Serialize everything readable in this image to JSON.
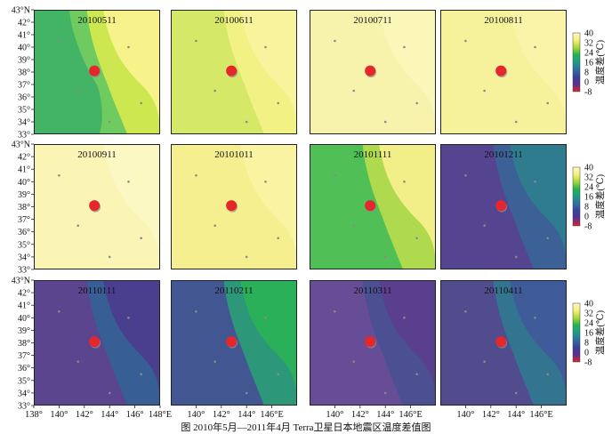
{
  "chart_data": {
    "type": "heatmap",
    "description": "Monthly temperature-difference maps (12 panels)",
    "epicenter": {
      "lon": 142.8,
      "lat": 38.1
    },
    "y_ticks": [
      "43°N",
      "42°",
      "41°",
      "40°",
      "39°",
      "38°",
      "37°",
      "36°",
      "35°",
      "34°",
      "33°"
    ],
    "x_ticks_col1": [
      "138°",
      "140°",
      "142°",
      "144°",
      "146°",
      "148°E"
    ],
    "x_ticks_col2": [
      "140°",
      "142°",
      "144°",
      "146°E"
    ],
    "x_ticks_col3": [
      "140°",
      "142°",
      "144°",
      "146°E"
    ],
    "x_ticks_col4": [
      "140°",
      "142°",
      "144°",
      "146°E"
    ],
    "colorbar": {
      "title": "温度差(℃)",
      "ticks": [
        "40",
        "32",
        "24",
        "16",
        "8",
        "0",
        "-8"
      ],
      "range": [
        -8,
        40
      ],
      "colors": [
        "#d9262b",
        "#5b2f8f",
        "#3a3f9a",
        "#2f6fa0",
        "#1f9a8a",
        "#22b24c",
        "#a7d63a",
        "#f5f07a",
        "#fdf9c4"
      ]
    },
    "panels": [
      {
        "date": "20100511",
        "base": "#f7f28a",
        "layers": [
          {
            "c": "#c8e64a",
            "o": 0.9
          },
          {
            "c": "#5ec463",
            "o": 0.85
          },
          {
            "c": "#26a36b",
            "o": 0.6
          }
        ]
      },
      {
        "date": "20100611",
        "base": "#f8f39c",
        "layers": [
          {
            "c": "#eef07a",
            "o": 0.7
          },
          {
            "c": "#c4e254",
            "o": 0.6
          }
        ]
      },
      {
        "date": "20100711",
        "base": "#fbf7b8",
        "layers": [
          {
            "c": "#f6f0a0",
            "o": 0.5
          }
        ]
      },
      {
        "date": "20100811",
        "base": "#f9f4a8",
        "layers": [
          {
            "c": "#f3ee8e",
            "o": 0.5
          }
        ]
      },
      {
        "date": "20100911",
        "base": "#fcf8c4",
        "layers": [
          {
            "c": "#f7f1a6",
            "o": 0.5
          }
        ]
      },
      {
        "date": "20101011",
        "base": "#f9f3a2",
        "layers": [
          {
            "c": "#f1ec82",
            "o": 0.6
          }
        ]
      },
      {
        "date": "20101111",
        "base": "#f3ef88",
        "layers": [
          {
            "c": "#9fd43e",
            "o": 0.8
          },
          {
            "c": "#3fbb58",
            "o": 0.85
          }
        ]
      },
      {
        "date": "20101211",
        "base": "#2f7c8e",
        "layers": [
          {
            "c": "#3e5a98",
            "o": 0.8
          },
          {
            "c": "#5a3f8e",
            "o": 0.85
          }
        ]
      },
      {
        "date": "20110111",
        "base": "#4a3f8e",
        "layers": [
          {
            "c": "#2f6c98",
            "o": 0.7
          },
          {
            "c": "#6a3a8c",
            "o": 0.7
          }
        ]
      },
      {
        "date": "20110211",
        "base": "#2bb05a",
        "layers": [
          {
            "c": "#2f8f84",
            "o": 0.75
          },
          {
            "c": "#474a95",
            "o": 0.85
          }
        ]
      },
      {
        "date": "20110311",
        "base": "#5a3f8e",
        "layers": [
          {
            "c": "#3f5c95",
            "o": 0.6
          },
          {
            "c": "#7a4b97",
            "o": 0.6
          }
        ]
      },
      {
        "date": "20110411",
        "base": "#3f5b99",
        "layers": [
          {
            "c": "#2f7f8c",
            "o": 0.7
          },
          {
            "c": "#5b3f8e",
            "o": 0.75
          }
        ]
      }
    ]
  },
  "caption": "图    2010年5月—2011年4月 Terra卫星日本地震区温度差值图"
}
